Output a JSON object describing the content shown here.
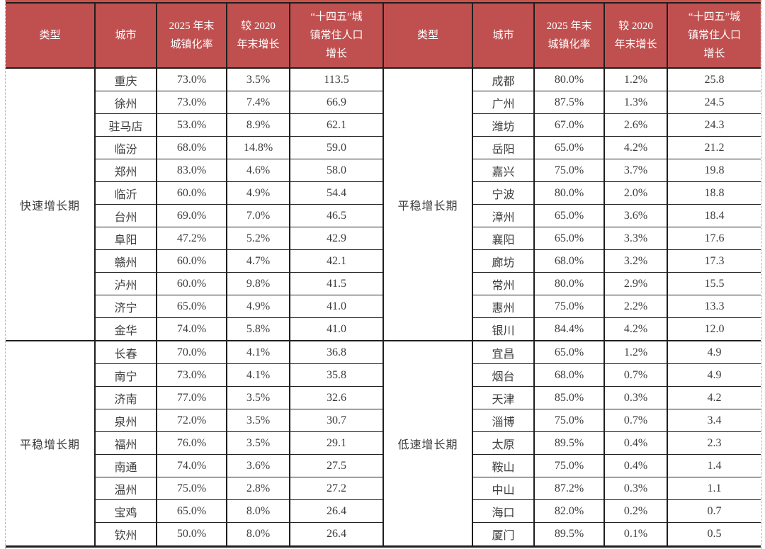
{
  "colors": {
    "header_bg": "#C05050",
    "header_text": "#FFFFFF",
    "border_color": "#1F1F1F",
    "text_color": "#3D3D3D",
    "top_strip": "#C9504B",
    "page_line_left": "#B5B5B5",
    "page_line_right": "#E8A09E"
  },
  "table": {
    "headers": [
      "类型",
      "城市",
      "2025 年末\n城镇化率",
      "较 2020\n年末增长",
      "“十四五”城\n镇常住人口\n增长"
    ],
    "left": {
      "groups": [
        {
          "type": "快速增长期",
          "rows": [
            [
              "重庆",
              "73.0%",
              "3.5%",
              "113.5"
            ],
            [
              "徐州",
              "73.0%",
              "7.4%",
              "66.9"
            ],
            [
              "驻马店",
              "53.0%",
              "8.9%",
              "62.1"
            ],
            [
              "临汾",
              "68.0%",
              "14.8%",
              "59.0"
            ],
            [
              "郑州",
              "83.0%",
              "4.6%",
              "58.0"
            ],
            [
              "临沂",
              "60.0%",
              "4.9%",
              "54.4"
            ],
            [
              "台州",
              "69.0%",
              "7.0%",
              "46.5"
            ],
            [
              "阜阳",
              "47.2%",
              "5.2%",
              "42.9"
            ],
            [
              "赣州",
              "60.0%",
              "4.7%",
              "42.1"
            ],
            [
              "泸州",
              "60.0%",
              "9.8%",
              "41.5"
            ],
            [
              "济宁",
              "65.0%",
              "4.9%",
              "41.0"
            ],
            [
              "金华",
              "74.0%",
              "5.8%",
              "41.0"
            ]
          ]
        },
        {
          "type": "平稳增长期",
          "rows": [
            [
              "长春",
              "70.0%",
              "4.1%",
              "36.8"
            ],
            [
              "南宁",
              "73.0%",
              "4.1%",
              "35.8"
            ],
            [
              "济南",
              "77.0%",
              "3.5%",
              "32.6"
            ],
            [
              "泉州",
              "72.0%",
              "3.5%",
              "30.7"
            ],
            [
              "福州",
              "76.0%",
              "3.5%",
              "29.1"
            ],
            [
              "南通",
              "74.0%",
              "3.6%",
              "27.5"
            ],
            [
              "温州",
              "75.0%",
              "2.8%",
              "27.2"
            ],
            [
              "宝鸡",
              "65.0%",
              "8.0%",
              "26.4"
            ],
            [
              "钦州",
              "50.0%",
              "8.0%",
              "26.4"
            ]
          ]
        }
      ]
    },
    "right": {
      "groups": [
        {
          "type": "平稳增长期",
          "rows": [
            [
              "成都",
              "80.0%",
              "1.2%",
              "25.8"
            ],
            [
              "广州",
              "87.5%",
              "1.3%",
              "24.5"
            ],
            [
              "潍坊",
              "67.0%",
              "2.6%",
              "24.3"
            ],
            [
              "岳阳",
              "65.0%",
              "4.2%",
              "21.2"
            ],
            [
              "嘉兴",
              "75.0%",
              "3.7%",
              "19.8"
            ],
            [
              "宁波",
              "80.0%",
              "2.0%",
              "18.8"
            ],
            [
              "漳州",
              "65.0%",
              "3.6%",
              "18.4"
            ],
            [
              "襄阳",
              "65.0%",
              "3.3%",
              "17.6"
            ],
            [
              "廊坊",
              "68.0%",
              "3.2%",
              "17.3"
            ],
            [
              "常州",
              "80.0%",
              "2.9%",
              "15.5"
            ],
            [
              "惠州",
              "75.0%",
              "2.2%",
              "13.3"
            ],
            [
              "银川",
              "84.4%",
              "4.2%",
              "12.0"
            ]
          ]
        },
        {
          "type": "低速增长期",
          "rows": [
            [
              "宜昌",
              "65.0%",
              "1.2%",
              "4.9"
            ],
            [
              "烟台",
              "68.0%",
              "0.7%",
              "4.9"
            ],
            [
              "天津",
              "85.0%",
              "0.3%",
              "4.2"
            ],
            [
              "淄博",
              "75.0%",
              "0.7%",
              "3.4"
            ],
            [
              "太原",
              "89.5%",
              "0.4%",
              "2.3"
            ],
            [
              "鞍山",
              "75.0%",
              "0.4%",
              "1.4"
            ],
            [
              "中山",
              "87.2%",
              "0.3%",
              "1.1"
            ],
            [
              "海口",
              "82.0%",
              "0.2%",
              "0.7"
            ],
            [
              "厦门",
              "89.5%",
              "0.1%",
              "0.5"
            ]
          ]
        }
      ]
    }
  }
}
